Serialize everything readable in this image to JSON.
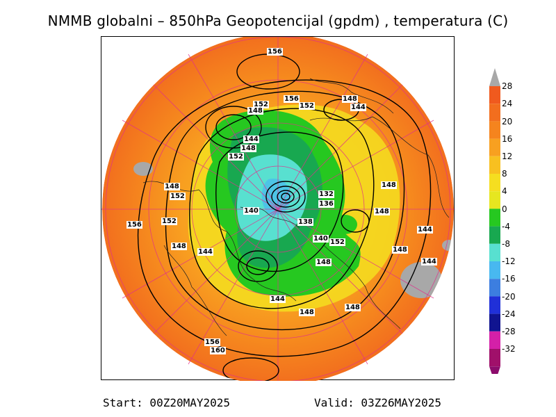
{
  "title": "NMMB globalni – 850hPa Geopotencijal (gpdm) , temperatura (C)",
  "footer": {
    "start": "Start: 00Z20MAY2025",
    "valid": "Valid: 03Z26MAY2025"
  },
  "legend": {
    "levels": [
      "28",
      "24",
      "20",
      "16",
      "12",
      "8",
      "4",
      "0",
      "-4",
      "-8",
      "-12",
      "-16",
      "-20",
      "-24",
      "-28",
      "-32"
    ],
    "colors": [
      "#f05a1e",
      "#f26e1e",
      "#f5841e",
      "#f8a020",
      "#f8c020",
      "#f5de20",
      "#e6e620",
      "#26c820",
      "#18a850",
      "#58e0d0",
      "#48b8f0",
      "#3c7ee0",
      "#2030d8",
      "#101490",
      "#d420a8",
      "#a0106a"
    ],
    "top_color": "#a8a8a8",
    "bottom_color": "#8c0c6c"
  },
  "isolines": [
    {
      "label": "156"
    },
    {
      "label": "152"
    },
    {
      "label": "148"
    },
    {
      "label": "156"
    },
    {
      "label": "152"
    },
    {
      "label": "148"
    },
    {
      "label": "144"
    },
    {
      "label": "144"
    },
    {
      "label": "148"
    },
    {
      "label": "152"
    },
    {
      "label": "148"
    },
    {
      "label": "152"
    },
    {
      "label": "140"
    },
    {
      "label": "132"
    },
    {
      "label": "136"
    },
    {
      "label": "148"
    },
    {
      "label": "156"
    },
    {
      "label": "152"
    },
    {
      "label": "138"
    },
    {
      "label": "140"
    },
    {
      "label": "152"
    },
    {
      "label": "144"
    },
    {
      "label": "148"
    },
    {
      "label": "144"
    },
    {
      "label": "148"
    },
    {
      "label": "144"
    },
    {
      "label": "148"
    },
    {
      "label": "148"
    },
    {
      "label": "144"
    },
    {
      "label": "148"
    },
    {
      "label": "160"
    },
    {
      "label": "156"
    }
  ]
}
